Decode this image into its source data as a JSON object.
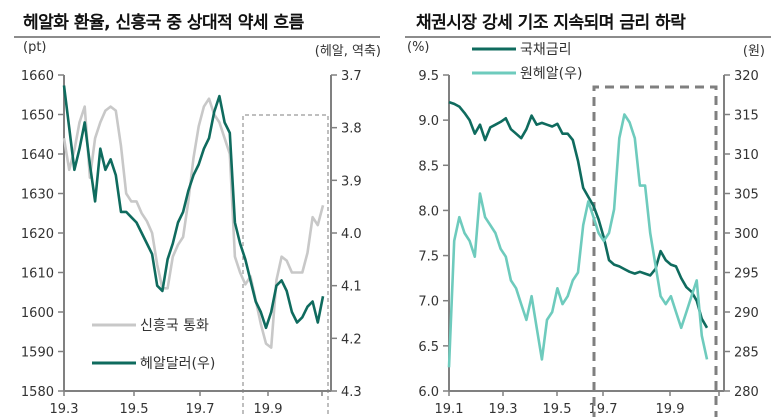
{
  "left": {
    "title": "헤알화 환율, 신흥국 중 상대적 약세 흐름",
    "unit_left": "(pt)",
    "unit_right": "(헤알, 역축)"
  },
  "right": {
    "title": "채권시장 강세 기조 지속되며 금리 하락",
    "unit_left": "(%)",
    "unit_right": "(원)"
  },
  "colors": {
    "dark_teal": "#0f6b5e",
    "light_teal": "#6ecbbd",
    "gray_line": "#c8c8c8",
    "axis": "#808080",
    "dash": "#7f7f7f"
  },
  "chart_data": [
    {
      "type": "line",
      "title": "헤알화 환율, 신흥국 중 상대적 약세 흐름",
      "ylabel": "(pt)",
      "ylabel_right": "(헤알, 역축)",
      "ylim": [
        1580,
        1660
      ],
      "ylim_right": [
        3.7,
        4.3
      ],
      "right_axis_inverted": true,
      "yticks": [
        1580,
        1590,
        1600,
        1610,
        1620,
        1630,
        1640,
        1650,
        1660
      ],
      "yticks_right": [
        "3.7",
        "3.8",
        "3.9",
        "4.0",
        "4.1",
        "4.2",
        "4.3"
      ],
      "x_ticks": [
        "19.3",
        "19.5",
        "19.7",
        "19.9"
      ],
      "highlight_box": {
        "x_from": "19.8",
        "x_to": "19.10 end",
        "style": "dashed-thin"
      },
      "legend": [
        {
          "label": "신흥국 통화",
          "color": "#c8c8c8",
          "axis": "left"
        },
        {
          "label": "헤알달러(우)",
          "color": "#0f6b5e",
          "axis": "right"
        }
      ],
      "x": [
        0,
        2,
        4,
        6,
        8,
        10,
        12,
        14,
        16,
        18,
        20,
        22,
        24,
        26,
        28,
        30,
        32,
        34,
        36,
        38,
        40,
        42,
        44,
        46,
        48,
        50,
        52,
        54,
        56,
        58,
        60,
        62,
        64,
        66,
        68,
        70,
        72,
        74,
        76,
        78,
        80,
        82,
        84,
        86,
        88,
        90,
        92,
        94,
        96,
        98,
        100
      ],
      "series": [
        {
          "name": "신흥국 통화",
          "axis": "left",
          "values": [
            1644,
            1636,
            1641,
            1648,
            1652,
            1634,
            1644,
            1648,
            1651,
            1652,
            1651,
            1642,
            1630,
            1628,
            1628,
            1625,
            1623,
            1620,
            1612,
            1606,
            1606,
            1614,
            1617,
            1619,
            1628,
            1639,
            1647,
            1652,
            1654,
            1650,
            1648,
            1644,
            1640,
            1614,
            1610,
            1607,
            1609,
            1603,
            1597,
            1592,
            1591,
            1608,
            1614,
            1613,
            1610,
            1610,
            1610,
            1615,
            1624,
            1622,
            1627
          ]
        },
        {
          "name": "헤알달러(우)",
          "axis": "right",
          "values": [
            3.72,
            3.8,
            3.88,
            3.84,
            3.79,
            3.87,
            3.94,
            3.84,
            3.88,
            3.86,
            3.89,
            3.96,
            3.96,
            3.97,
            3.98,
            4.0,
            4.02,
            4.04,
            4.1,
            4.11,
            4.05,
            4.02,
            3.98,
            3.96,
            3.92,
            3.89,
            3.87,
            3.84,
            3.82,
            3.77,
            3.74,
            3.79,
            3.81,
            3.98,
            4.02,
            4.05,
            4.09,
            4.13,
            4.15,
            4.18,
            4.15,
            4.1,
            4.09,
            4.11,
            4.15,
            4.17,
            4.16,
            4.14,
            4.13,
            4.17,
            4.12
          ]
        }
      ]
    },
    {
      "type": "line",
      "title": "채권시장 강세 기조 지속되며 금리 하락",
      "ylabel": "(%)",
      "ylabel_right": "(원)",
      "ylim": [
        6.0,
        9.5
      ],
      "ylim_right": [
        280,
        320
      ],
      "yticks": [
        "6.0",
        "6.5",
        "7.0",
        "7.5",
        "8.0",
        "8.5",
        "9.0",
        "9.5"
      ],
      "yticks_right": [
        280,
        285,
        290,
        295,
        300,
        305,
        310,
        315,
        320
      ],
      "x_ticks": [
        "19.1",
        "19.3",
        "19.5",
        "19.7",
        "19.9"
      ],
      "highlight_box": {
        "x_from": "19.6 mid",
        "x_to": "19.10 end",
        "style": "dashed-thick"
      },
      "legend": [
        {
          "label": "국채금리",
          "color": "#0f6b5e",
          "axis": "left"
        },
        {
          "label": "원헤알(우)",
          "color": "#6ecbbd",
          "axis": "right"
        }
      ],
      "x": [
        0,
        2,
        4,
        6,
        8,
        10,
        12,
        14,
        16,
        18,
        20,
        22,
        24,
        26,
        28,
        30,
        32,
        34,
        36,
        38,
        40,
        42,
        44,
        46,
        48,
        50,
        52,
        54,
        56,
        58,
        60,
        62,
        64,
        66,
        68,
        70,
        72,
        74,
        76,
        78,
        80,
        82,
        84,
        86,
        88,
        90,
        92,
        94,
        96,
        98,
        100
      ],
      "series": [
        {
          "name": "국채금리",
          "axis": "left",
          "values": [
            9.2,
            9.18,
            9.15,
            9.08,
            9.0,
            8.85,
            8.95,
            8.78,
            8.92,
            8.95,
            8.98,
            9.02,
            8.9,
            8.85,
            8.8,
            8.9,
            9.05,
            8.95,
            8.97,
            8.95,
            8.93,
            8.96,
            8.85,
            8.85,
            8.78,
            8.55,
            8.25,
            8.15,
            8.05,
            7.9,
            7.7,
            7.45,
            7.4,
            7.38,
            7.35,
            7.32,
            7.3,
            7.32,
            7.3,
            7.28,
            7.35,
            7.55,
            7.45,
            7.4,
            7.38,
            7.25,
            7.15,
            7.1,
            7.0,
            6.8,
            6.7
          ]
        },
        {
          "name": "원헤알(우)",
          "axis": "right",
          "values": [
            283,
            299,
            302,
            300,
            299,
            297,
            305,
            302,
            301,
            300,
            298,
            297,
            294,
            293,
            291,
            289,
            292,
            288,
            284,
            289,
            290,
            293,
            291,
            292,
            294,
            295,
            301,
            304,
            302,
            300,
            299,
            300,
            303,
            312,
            315,
            314,
            312,
            306,
            306,
            300,
            296,
            292,
            291,
            292,
            290,
            288,
            290,
            292,
            294,
            287,
            284
          ]
        }
      ]
    }
  ]
}
